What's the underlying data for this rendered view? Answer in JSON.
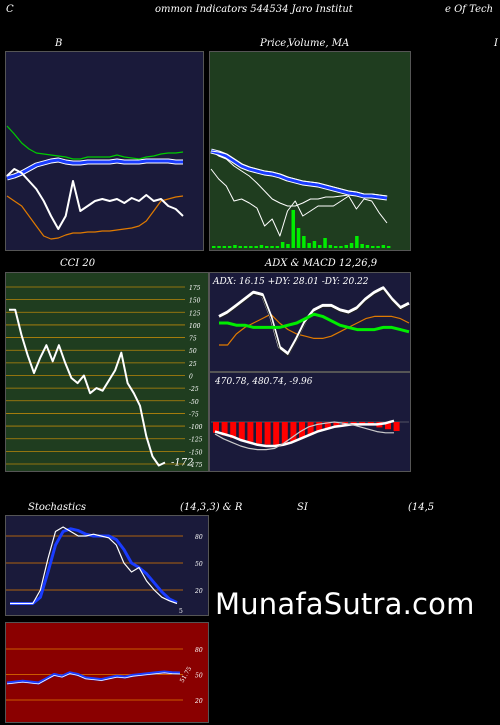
{
  "header": {
    "left": "C",
    "center": "ommon  Indicators 544534  Jaro  Institut",
    "right": "e  Of Tech"
  },
  "labels": {
    "bb_title": "B",
    "price_title": "Price,",
    "price_overlap": "Volume, MA",
    "right_edge": "I",
    "cci_title": "CCI 20",
    "adx_title": "ADX  & MACD 12,26,9",
    "adx_values": "ADX: 16.15  +DY: 28.01 -DY: 20.22",
    "macd_values": "470.78,   480.74,   -9.96",
    "cci_last": "-172",
    "stoch_title": "Stochastics",
    "stoch_params": "(14,3,3) & R",
    "rsi_title": "SI",
    "rsi_params": "(14,5",
    "stoch_last": "5",
    "rsi_last": "51.75"
  },
  "watermark": "MunafaSutra.com",
  "colors": {
    "navy": "#1a1a3a",
    "green_panel": "#1f3d1f",
    "red_panel": "#8a0000",
    "orange": "#e07a00",
    "bright_green": "#00ee00",
    "blue": "#1a3cff"
  },
  "chart_data": [
    {
      "type": "line",
      "title": "B",
      "series": [
        {
          "values": [
            127,
            125,
            122,
            118,
            114,
            112,
            110,
            109,
            111,
            112,
            112,
            111,
            111,
            111,
            111,
            110,
            111,
            111,
            111,
            110,
            110,
            110,
            110,
            111,
            111
          ]
        },
        {
          "values": [
            75,
            83,
            92,
            98,
            102,
            103,
            104,
            105,
            106,
            108,
            108,
            106,
            106,
            106,
            106,
            104,
            106,
            107,
            108,
            106,
            105,
            103,
            102,
            102,
            101
          ]
        },
        {
          "values": [
            145,
            150,
            155,
            165,
            175,
            185,
            188,
            187,
            184,
            182,
            182,
            181,
            181,
            180,
            180,
            179,
            178,
            177,
            175,
            170,
            160,
            150,
            148,
            146,
            145
          ]
        },
        {
          "values": [
            125,
            118,
            122,
            130,
            138,
            150,
            165,
            178,
            165,
            130,
            160,
            155,
            150,
            148,
            150,
            148,
            152,
            147,
            150,
            144,
            150,
            148,
            155,
            158,
            165
          ]
        }
      ]
    },
    {
      "type": "line",
      "title": "Price, Volume, MA",
      "series": [
        {
          "values": [
            100,
            105,
            108,
            115,
            120,
            125,
            132,
            140,
            148,
            152,
            155,
            155,
            152,
            148,
            148,
            146,
            146,
            145,
            144,
            143,
            144,
            145,
            146,
            147
          ]
        },
        {
          "values": [
            100,
            102,
            105,
            110,
            115,
            118,
            120,
            122,
            123,
            125,
            128,
            130,
            132,
            133,
            134,
            136,
            138,
            140,
            142,
            143,
            145,
            145,
            146,
            147
          ]
        },
        {
          "values": [
            100,
            101,
            103,
            108,
            113,
            116,
            118,
            120,
            121,
            123,
            126,
            128,
            130,
            131,
            132,
            134,
            136,
            138,
            140,
            141,
            143,
            143,
            144,
            145
          ]
        },
        {
          "values": [
            118,
            128,
            135,
            150,
            148,
            152,
            157,
            175,
            168,
            185,
            160,
            150,
            165,
            160,
            155,
            155,
            155,
            150,
            145,
            158,
            148,
            150,
            162,
            172
          ]
        }
      ],
      "volume": [
        2,
        2,
        2,
        2,
        3,
        2,
        2,
        2,
        2,
        3,
        2,
        2,
        2,
        6,
        4,
        38,
        20,
        12,
        5,
        7,
        3,
        10,
        3,
        2,
        2,
        3,
        5,
        12,
        4,
        3,
        2,
        2,
        3,
        2
      ]
    },
    {
      "type": "line",
      "title": "CCI 20",
      "y_ticks": [
        175,
        150,
        125,
        100,
        75,
        50,
        25,
        0,
        -25,
        -50,
        -75,
        -100,
        -125,
        -150,
        -175
      ],
      "values": [
        130,
        130,
        80,
        40,
        5,
        35,
        60,
        28,
        60,
        25,
        -5,
        -15,
        0,
        -35,
        -25,
        -30,
        -10,
        10,
        45,
        -15,
        -35,
        -60,
        -120,
        -160,
        -178,
        -172
      ]
    },
    {
      "type": "line",
      "title": "ADX & MACD 12,26,9",
      "adx": {
        "adx": [
          20,
          20,
          19,
          19,
          18,
          18,
          18,
          18,
          19,
          20,
          22,
          24,
          23,
          21,
          19,
          18,
          17,
          17,
          17,
          18,
          18,
          17,
          16
        ],
        "plus_di": [
          22,
          24,
          27,
          30,
          33,
          32,
          22,
          8,
          5,
          12,
          20,
          25,
          27,
          27,
          25,
          24,
          26,
          30,
          33,
          35,
          30,
          26,
          28
        ],
        "minus_di": [
          10,
          10,
          15,
          18,
          20,
          22,
          24,
          20,
          17,
          15,
          14,
          13,
          13,
          14,
          16,
          18,
          20,
          22,
          23,
          23,
          23,
          22,
          20
        ]
      },
      "macd": {
        "macd": [
          470,
          466,
          463,
          460,
          458,
          457,
          457,
          458,
          462,
          467,
          472,
          476,
          478,
          479,
          480,
          479,
          478,
          476,
          474,
          472,
          471,
          471
        ],
        "signal": [
          472,
          470,
          468,
          465,
          463,
          461,
          460,
          460,
          461,
          463,
          466,
          469,
          472,
          474,
          476,
          477,
          478,
          478,
          478,
          478,
          479,
          481
        ],
        "histogram": [
          -12,
          -15,
          -18,
          -20,
          -22,
          -24,
          -25,
          -26,
          -25,
          -22,
          -18,
          -14,
          -10,
          -7,
          -5,
          -3,
          -2,
          -2,
          -4,
          -6,
          -8,
          -10
        ]
      }
    },
    {
      "type": "line",
      "title": "Stochastics (14,3,3)",
      "y_ticks": [
        80,
        50,
        20
      ],
      "k": [
        5,
        5,
        5,
        5,
        20,
        55,
        85,
        90,
        85,
        80,
        80,
        82,
        80,
        78,
        70,
        50,
        40,
        45,
        30,
        20,
        12,
        8,
        5
      ],
      "d": [
        5,
        5,
        5,
        5,
        12,
        40,
        70,
        85,
        88,
        86,
        82,
        80,
        80,
        80,
        76,
        65,
        50,
        45,
        38,
        28,
        18,
        10,
        6
      ]
    },
    {
      "type": "line",
      "title": "RSI (14,5)",
      "y_ticks": [
        80,
        50,
        20
      ],
      "values": [
        40,
        41,
        42,
        41,
        40,
        45,
        50,
        48,
        52,
        50,
        46,
        45,
        44,
        46,
        48,
        47,
        49,
        50,
        51,
        52,
        53,
        52,
        51.75
      ]
    }
  ]
}
